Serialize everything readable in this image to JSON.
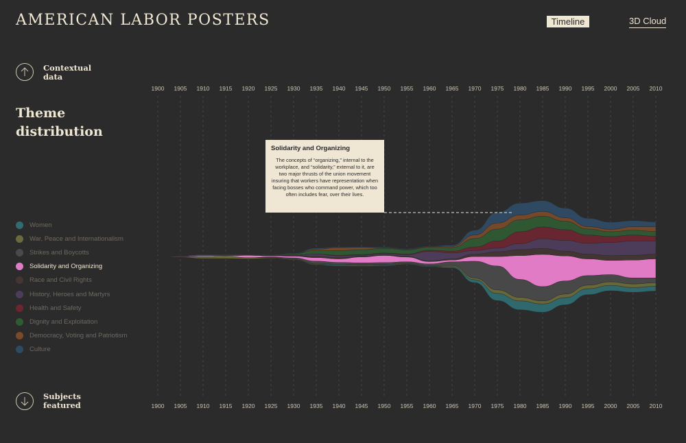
{
  "header": {
    "site_title": "AMERICAN LABOR POSTERS",
    "views": [
      {
        "label": "Timeline",
        "active": true
      },
      {
        "label": "3D Cloud",
        "active": false
      }
    ]
  },
  "sidebar": {
    "contextual_label": "Contextual\ndata",
    "section_title": "Theme\ndistribution",
    "subjects_label": "Subjects\nfeatured"
  },
  "tooltip": {
    "title": "Solidarity and Organizing",
    "text": "The concepts of “organizing,” internal to the workplace, and “solidarity,” external to it, are two major thrusts of the union movement insuring that workers have representation when facing bosses who command power, which too often includes fear, over their lives."
  },
  "colors": {
    "background": "#2b2b2b",
    "accent": "#efe6d4",
    "highlight": "#e27bc6"
  },
  "chart_data": {
    "type": "area",
    "subtype": "streamgraph",
    "x": [
      1900,
      1905,
      1910,
      1915,
      1920,
      1925,
      1930,
      1935,
      1940,
      1945,
      1950,
      1955,
      1960,
      1965,
      1970,
      1975,
      1980,
      1985,
      1990,
      1995,
      2000,
      2005,
      2010
    ],
    "xlim": [
      1900,
      2010
    ],
    "highlighted_series": "Solidarity and Organizing",
    "series": [
      {
        "name": "Women",
        "color": "#2f6d72",
        "values": [
          0,
          0,
          0,
          0,
          0,
          0,
          0.2,
          1.2,
          2,
          1.5,
          1.5,
          1.2,
          1,
          2,
          5,
          12,
          15,
          14,
          12,
          10,
          9,
          8,
          8
        ]
      },
      {
        "name": "War, Peace and Internationalism",
        "color": "#6a6a3a",
        "values": [
          0,
          1,
          3,
          4,
          2,
          1,
          1,
          1,
          1,
          1,
          1,
          1,
          1,
          2,
          3,
          6,
          6,
          5,
          6,
          6,
          6,
          6,
          6
        ]
      },
      {
        "name": "Strikes and Boycotts",
        "color": "#4a4a4a",
        "values": [
          0,
          0,
          0,
          0,
          0,
          1,
          2,
          4,
          3,
          3,
          3,
          2,
          3,
          6,
          28,
          40,
          30,
          24,
          22,
          16,
          12,
          10,
          8
        ]
      },
      {
        "name": "Solidarity and Organizing",
        "color": "#e27bc6",
        "values": [
          0,
          1,
          2,
          1,
          4,
          2,
          3,
          6,
          6,
          10,
          12,
          8,
          4,
          3,
          8,
          16,
          40,
          54,
          42,
          28,
          24,
          30,
          32
        ]
      },
      {
        "name": "Race and Civil Rights",
        "color": "#453633",
        "values": [
          0,
          0,
          0,
          0,
          0,
          0,
          1,
          2,
          2,
          1,
          1,
          1,
          1,
          2,
          4,
          8,
          10,
          10,
          8,
          8,
          8,
          8,
          8
        ]
      },
      {
        "name": "History, Heroes and Martyrs",
        "color": "#4e3c5c",
        "values": [
          0,
          1,
          2,
          2,
          1,
          1,
          1,
          4,
          3,
          2,
          2,
          3,
          16,
          10,
          6,
          6,
          10,
          16,
          18,
          18,
          22,
          24,
          22
        ]
      },
      {
        "name": "Health and Safety",
        "color": "#6b2630",
        "values": [
          0,
          0,
          0,
          0,
          0,
          0,
          0,
          0,
          1,
          1,
          1,
          1,
          2,
          3,
          6,
          12,
          20,
          20,
          18,
          14,
          10,
          10,
          8
        ]
      },
      {
        "name": "Dignity and Exploitation",
        "color": "#2f5b33",
        "values": [
          0,
          0,
          0,
          0,
          1,
          1,
          2,
          6,
          8,
          8,
          8,
          7,
          5,
          6,
          14,
          20,
          20,
          18,
          14,
          10,
          8,
          8,
          8
        ]
      },
      {
        "name": "Democracy, Voting and Patriotism",
        "color": "#7a4a2a",
        "values": [
          0,
          0,
          0,
          0,
          0,
          0,
          0,
          2,
          5,
          4,
          1,
          1,
          1,
          2,
          6,
          10,
          8,
          8,
          6,
          4,
          4,
          6,
          8
        ]
      },
      {
        "name": "Culture",
        "color": "#2e4b64",
        "values": [
          0,
          0,
          0,
          0,
          0,
          0,
          1,
          2,
          1,
          1,
          1,
          1,
          1,
          2,
          8,
          18,
          20,
          18,
          16,
          14,
          12,
          10,
          8
        ]
      }
    ]
  }
}
